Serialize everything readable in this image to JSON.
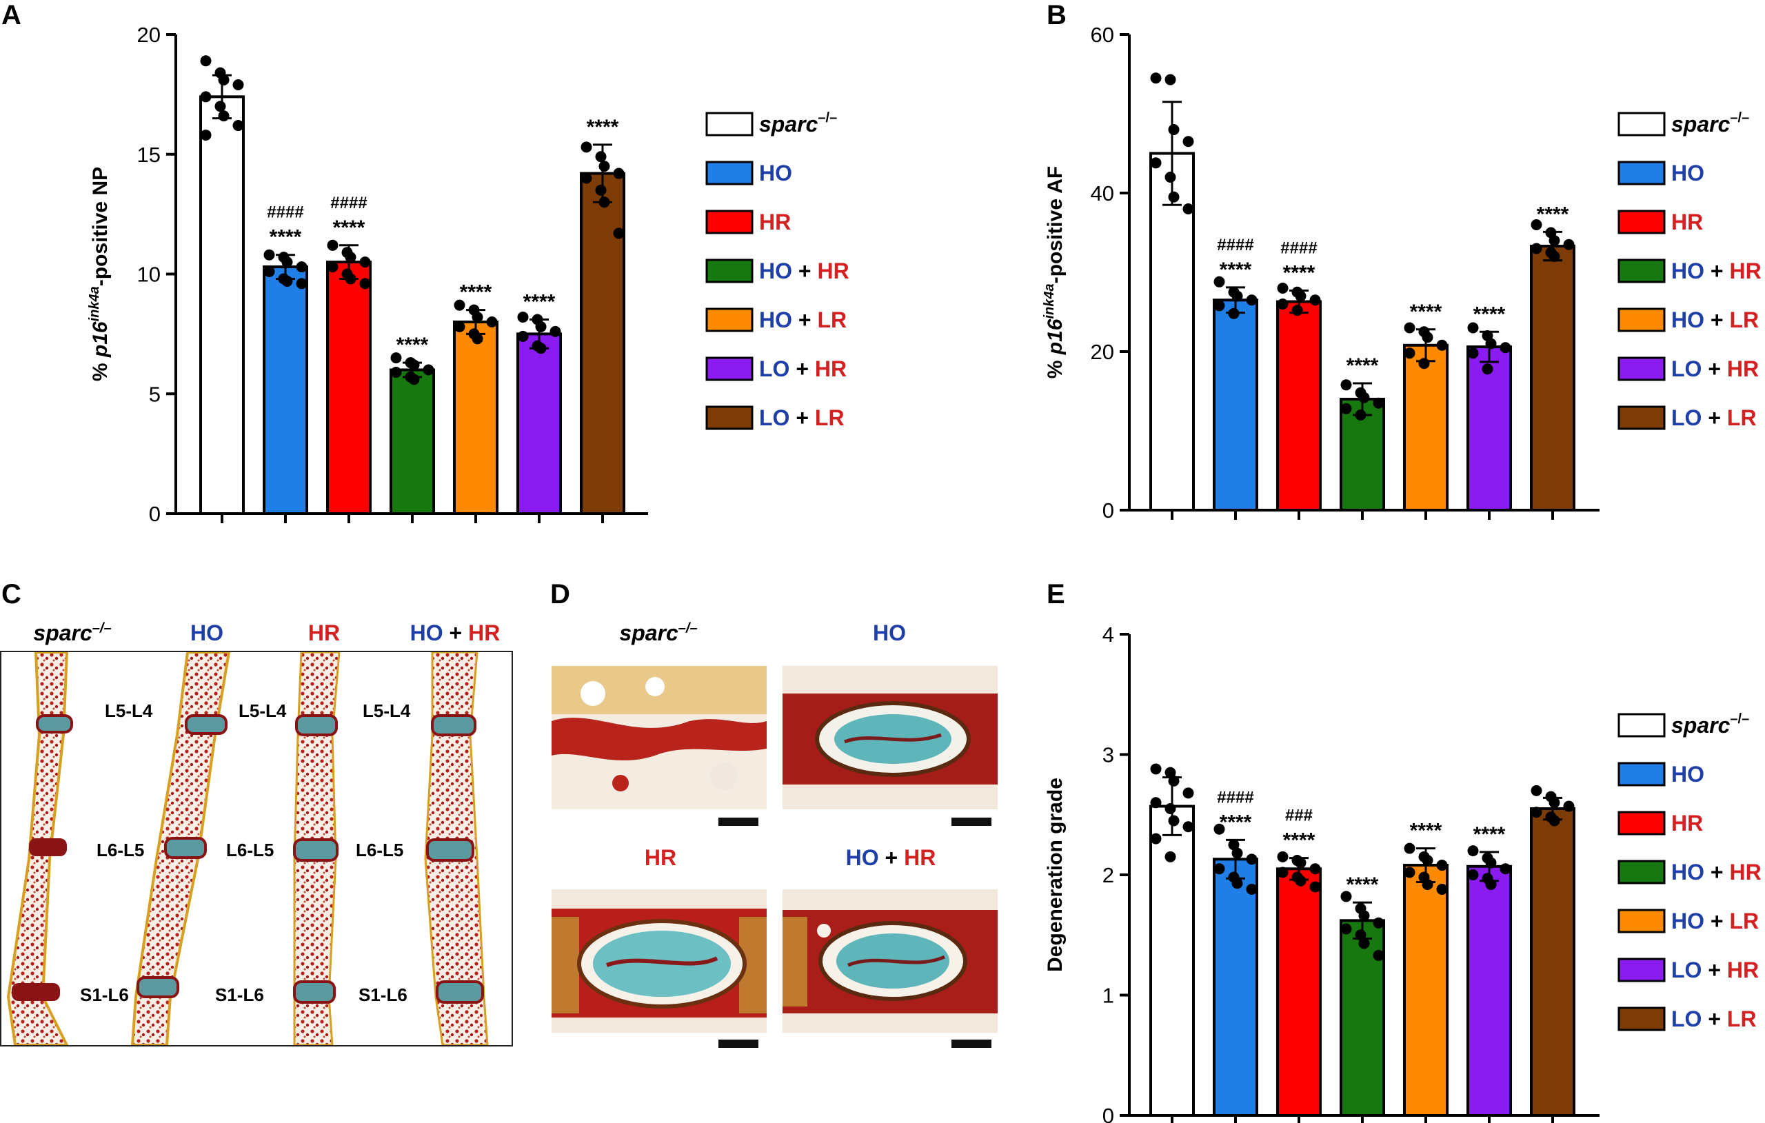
{
  "colors": {
    "sparc": "#ffffff",
    "HO": "#1f7fe6",
    "HR": "#ff0000",
    "HO_HR": "#16780f",
    "HO_LR": "#ff8a00",
    "LO_HR": "#8a1cf2",
    "LO_LR": "#7d3b06",
    "label_blue": "#1f3fa8",
    "label_red": "#d42020"
  },
  "legend": [
    {
      "key": "sparc",
      "label_main": "sparc",
      "label_sup": "–/–"
    },
    {
      "key": "HO",
      "label_main": "HO"
    },
    {
      "key": "HR",
      "label_main": "HR"
    },
    {
      "key": "HO_HR",
      "first": "HO",
      "plus": "+",
      "second": "HR"
    },
    {
      "key": "HO_LR",
      "first": "HO",
      "plus": "+",
      "second": "LR"
    },
    {
      "key": "LO_HR",
      "first": "LO",
      "plus": "+",
      "second": "HR"
    },
    {
      "key": "LO_LR",
      "first": "LO",
      "plus": "+",
      "second": "LR"
    }
  ],
  "chart_data": [
    {
      "panel": "A",
      "type": "bar",
      "ylabel_prefix": "% ",
      "ylabel_gene": "p16",
      "ylabel_sup": "ink4a",
      "ylabel_suffix": "-positive NP",
      "ylim": [
        0,
        20
      ],
      "yticks": [
        0,
        5,
        10,
        15,
        20
      ],
      "categories": [
        "sparc–/–",
        "HO",
        "HR",
        "HO + HR",
        "HO + LR",
        "LO + HR",
        "LO + LR"
      ],
      "values": [
        17.4,
        10.3,
        10.5,
        6.0,
        8.0,
        7.5,
        14.2
      ],
      "errors": [
        0.9,
        0.5,
        0.7,
        0.3,
        0.5,
        0.6,
        1.2
      ],
      "annotations": [
        "",
        "****",
        "****",
        "****",
        "****",
        "****",
        "****"
      ],
      "annotations2": [
        "",
        "####",
        "####",
        "",
        "",
        "",
        ""
      ],
      "points": [
        [
          18.9,
          18.4,
          18.1,
          17.9,
          17.4,
          17.0,
          16.6,
          16.2,
          15.8
        ],
        [
          10.8,
          10.7,
          10.5,
          10.3,
          10.1,
          9.8,
          9.7,
          9.6
        ],
        [
          11.2,
          10.9,
          10.7,
          10.5,
          10.3,
          10.0,
          9.8,
          9.6
        ],
        [
          6.5,
          6.3,
          6.2,
          6.0,
          5.9,
          5.7,
          5.6
        ],
        [
          8.7,
          8.5,
          8.2,
          8.0,
          7.8,
          7.5,
          7.3
        ],
        [
          8.2,
          8.1,
          7.8,
          7.6,
          7.4,
          7.0,
          6.9
        ],
        [
          15.3,
          14.9,
          14.5,
          14.2,
          14.0,
          13.5,
          13.0,
          11.7
        ]
      ]
    },
    {
      "panel": "B",
      "type": "bar",
      "ylabel_prefix": "% ",
      "ylabel_gene": "p16",
      "ylabel_sup": "ink4a",
      "ylabel_suffix": "-positive AF",
      "ylim": [
        0,
        60
      ],
      "yticks": [
        0,
        20,
        40,
        60
      ],
      "categories": [
        "sparc–/–",
        "HO",
        "HR",
        "HO + HR",
        "HO + LR",
        "LO + HR",
        "LO + LR"
      ],
      "values": [
        45.0,
        26.5,
        26.3,
        14.0,
        20.8,
        20.6,
        33.3
      ],
      "errors": [
        6.5,
        1.6,
        1.4,
        2.0,
        2.0,
        1.9,
        1.8
      ],
      "annotations": [
        "",
        "****",
        "****",
        "****",
        "****",
        "****",
        "****"
      ],
      "annotations2": [
        "",
        "####",
        "####",
        "",
        "",
        "",
        ""
      ],
      "points": [
        [
          54.5,
          54.3,
          48.0,
          46.5,
          43.8,
          42.0,
          39.5,
          38.0
        ],
        [
          28.8,
          27.5,
          27.0,
          26.5,
          25.8,
          24.8
        ],
        [
          28.0,
          27.5,
          27.0,
          26.5,
          26.0,
          25.2
        ],
        [
          15.8,
          14.8,
          14.2,
          13.5,
          12.8,
          12.0
        ],
        [
          23.0,
          22.5,
          21.8,
          20.8,
          19.8,
          18.5
        ],
        [
          23.0,
          22.0,
          21.0,
          20.5,
          19.8,
          17.8
        ],
        [
          36.0,
          35.0,
          34.0,
          33.5,
          33.0,
          32.5,
          32.0
        ]
      ]
    },
    {
      "panel": "E",
      "type": "bar",
      "ylabel": "Degeneration grade",
      "ylim": [
        0,
        4
      ],
      "yticks": [
        0,
        1,
        2,
        3,
        4
      ],
      "categories": [
        "sparc–/–",
        "HO",
        "HR",
        "HO + HR",
        "HO + LR",
        "LO + HR",
        "LO + LR"
      ],
      "values": [
        2.57,
        2.13,
        2.05,
        1.62,
        2.08,
        2.07,
        2.55
      ],
      "errors": [
        0.24,
        0.16,
        0.09,
        0.15,
        0.14,
        0.12,
        0.09
      ],
      "annotations": [
        "",
        "****",
        "****",
        "****",
        "****",
        "****",
        ""
      ],
      "annotations2": [
        "",
        "####",
        "###",
        "",
        "",
        "",
        ""
      ],
      "points": [
        [
          2.88,
          2.85,
          2.78,
          2.68,
          2.6,
          2.55,
          2.45,
          2.4,
          2.3,
          2.15
        ],
        [
          2.38,
          2.25,
          2.18,
          2.13,
          2.05,
          1.98,
          1.93,
          1.88
        ],
        [
          2.15,
          2.12,
          2.1,
          2.05,
          2.02,
          1.98,
          1.95,
          1.9
        ],
        [
          1.82,
          1.72,
          1.66,
          1.6,
          1.55,
          1.5,
          1.43,
          1.33
        ],
        [
          2.22,
          2.15,
          2.12,
          2.08,
          2.02,
          1.98,
          1.92,
          1.88
        ],
        [
          2.2,
          2.14,
          2.1,
          2.05,
          2.0,
          1.97,
          1.92
        ],
        [
          2.7,
          2.65,
          2.6,
          2.57,
          2.52,
          2.48,
          2.45
        ]
      ]
    }
  ],
  "panels": {
    "A": "A",
    "B": "B",
    "C": "C",
    "D": "D",
    "E": "E"
  },
  "panel_c": {
    "columns": [
      {
        "main": "sparc",
        "sup": "–/–"
      },
      {
        "main": "HO"
      },
      {
        "main": "HR"
      },
      {
        "first": "HO",
        "plus": "+",
        "second": "HR"
      }
    ],
    "levels": [
      "L5-L4",
      "L6-L5",
      "S1-L6"
    ]
  },
  "panel_d": {
    "titles": [
      {
        "main": "sparc",
        "sup": "–/–"
      },
      {
        "main": "HO"
      },
      {
        "main": "HR"
      },
      {
        "first": "HO",
        "plus": "+",
        "second": "HR"
      }
    ]
  }
}
